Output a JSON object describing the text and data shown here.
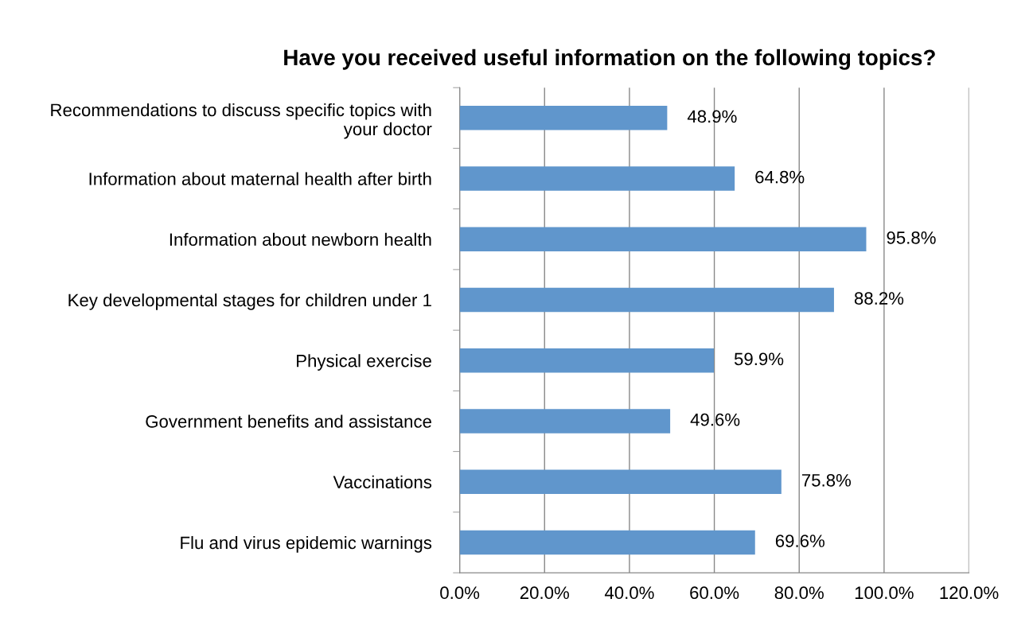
{
  "chart_data": {
    "type": "bar",
    "orientation": "horizontal",
    "title": "Have you received useful information on the following topics?",
    "categories": [
      "Recommendations to discuss specific topics with\nyour doctor",
      "Information about maternal health after birth",
      "Information about newborn health",
      "Key developmental stages for children under 1",
      "Physical exercise",
      "Government benefits and assistance",
      "Vaccinations",
      "Flu and virus epidemic warnings"
    ],
    "values": [
      48.9,
      64.8,
      95.8,
      88.2,
      59.9,
      49.6,
      75.8,
      69.6
    ],
    "value_labels": [
      "48.9%",
      "64.8%",
      "95.8%",
      "88.2%",
      "59.9%",
      "49.6%",
      "75.8%",
      "69.6%"
    ],
    "color": "#6096cc",
    "xlim": [
      0,
      120
    ],
    "xticks": [
      {
        "value": 0,
        "label": "0.0%"
      },
      {
        "value": 20,
        "label": "20.0%"
      },
      {
        "value": 40,
        "label": "40.0%"
      },
      {
        "value": 60,
        "label": "60.0%"
      },
      {
        "value": 80,
        "label": "80.0%"
      },
      {
        "value": 100,
        "label": "100.0%"
      },
      {
        "value": 120,
        "label": "120.0%"
      }
    ],
    "grid": "x",
    "legend": false
  }
}
